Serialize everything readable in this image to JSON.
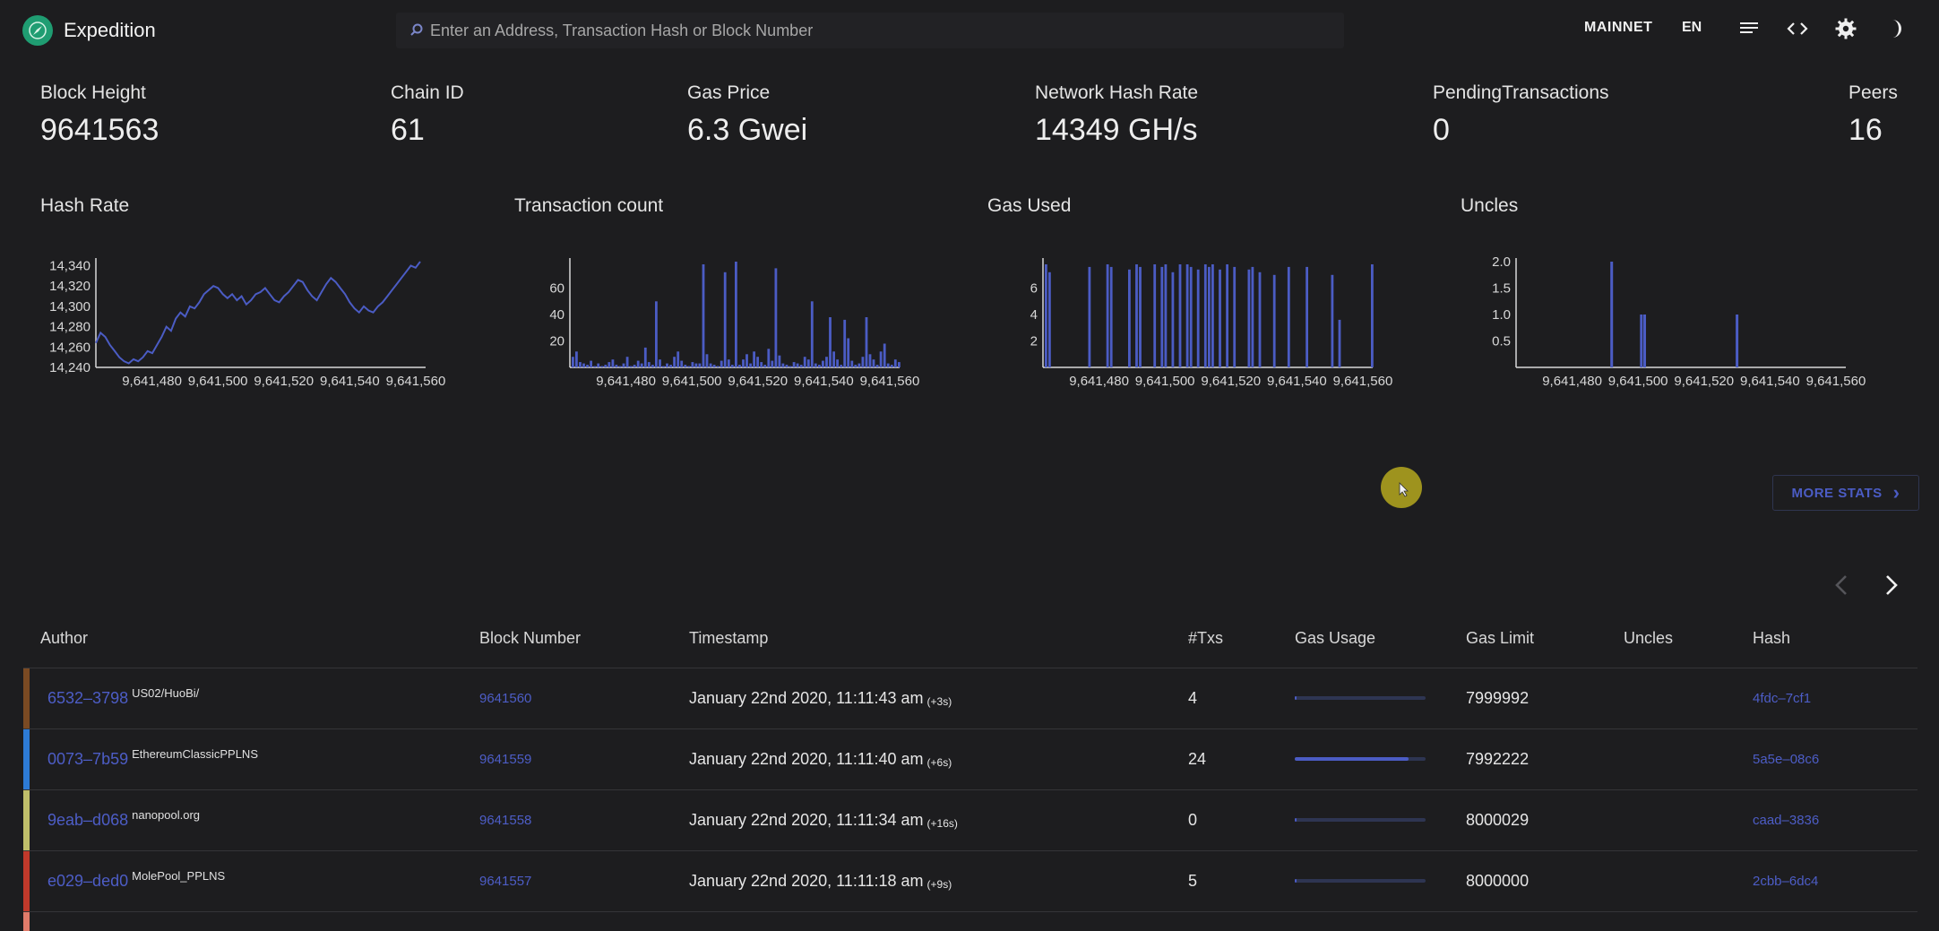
{
  "app": {
    "title": "Expedition",
    "logo_icon": "compass-leaf-icon"
  },
  "search": {
    "placeholder": "Enter an Address, Transaction Hash or Block Number"
  },
  "nav": {
    "network": "MAINNET",
    "language": "EN"
  },
  "stats": [
    {
      "label": "Block Height",
      "value": "9641563"
    },
    {
      "label": "Chain ID",
      "value": "61"
    },
    {
      "label": "Gas Price",
      "value": "6.3 Gwei"
    },
    {
      "label": "Network Hash Rate",
      "value": "14349 GH/s"
    },
    {
      "label": "PendingTransactions",
      "value": "0"
    },
    {
      "label": "Peers",
      "value": "16"
    }
  ],
  "chart_data": [
    {
      "type": "line",
      "title": "Hash Rate",
      "color": "#4b5cc4",
      "x_ticks": [
        "9,641,480",
        "9,641,500",
        "9,641,520",
        "9,641,540",
        "9,641,560"
      ],
      "y_ticks": [
        14240,
        14260,
        14280,
        14300,
        14320,
        14340
      ],
      "ylim": [
        14240,
        14344
      ],
      "xlim": [
        9641463,
        9641563
      ],
      "series": [
        {
          "values": [
            14264,
            14274,
            14270,
            14262,
            14256,
            14250,
            14246,
            14244,
            14248,
            14246,
            14250,
            14256,
            14254,
            14262,
            14270,
            14280,
            14276,
            14288,
            14294,
            14290,
            14300,
            14298,
            14304,
            14312,
            14316,
            14320,
            14318,
            14312,
            14308,
            14312,
            14306,
            14310,
            14302,
            14306,
            14312,
            14314,
            14318,
            14312,
            14306,
            14304,
            14310,
            14314,
            14320,
            14326,
            14324,
            14316,
            14310,
            14306,
            14314,
            14322,
            14328,
            14324,
            14318,
            14312,
            14304,
            14298,
            14294,
            14300,
            14296,
            14294,
            14300,
            14304,
            14310,
            14316,
            14322,
            14328,
            14334,
            14340,
            14338,
            14344
          ]
        }
      ]
    },
    {
      "type": "bar",
      "title": "Transaction count",
      "color": "#4b5cc4",
      "x_ticks": [
        "9,641,480",
        "9,641,500",
        "9,641,520",
        "9,641,540",
        "9,641,560"
      ],
      "y_ticks": [
        20,
        40,
        60
      ],
      "ylim": [
        0,
        80
      ],
      "xlim": [
        9641463,
        9641563
      ],
      "values": [
        8,
        12,
        4,
        3,
        2,
        5,
        1,
        3,
        1,
        2,
        4,
        6,
        2,
        1,
        3,
        8,
        1,
        2,
        5,
        3,
        15,
        4,
        2,
        50,
        6,
        1,
        3,
        2,
        8,
        12,
        5,
        2,
        1,
        4,
        3,
        3,
        78,
        10,
        3,
        2,
        1,
        5,
        72,
        6,
        2,
        80,
        2,
        6,
        10,
        3,
        12,
        8,
        4,
        2,
        14,
        5,
        75,
        9,
        3,
        2,
        1,
        4,
        3,
        2,
        8,
        6,
        50,
        3,
        2,
        5,
        8,
        38,
        12,
        6,
        2,
        36,
        22,
        5,
        2,
        3,
        8,
        38,
        10,
        6,
        2,
        12,
        18,
        3,
        2,
        6,
        4
      ]
    },
    {
      "type": "bar",
      "title": "Gas Used",
      "color": "#4b5cc4",
      "x_ticks": [
        "9,641,480",
        "9,641,500",
        "9,641,520",
        "9,641,540",
        "9,641,560"
      ],
      "y_ticks": [
        2,
        4,
        6
      ],
      "ylim": [
        0,
        8
      ],
      "xlim": [
        9641463,
        9641563
      ],
      "values": [
        7.8,
        7.2,
        0,
        0,
        0,
        0,
        0,
        0,
        0,
        0,
        0,
        0,
        7.6,
        0,
        0,
        0,
        0,
        7.8,
        7.6,
        0,
        0,
        0,
        0,
        7.4,
        0,
        7.8,
        7.6,
        0,
        0,
        0,
        7.8,
        0,
        7.6,
        7.8,
        0,
        7.2,
        0,
        7.8,
        0,
        7.8,
        7.6,
        0,
        7.4,
        0,
        7.8,
        7.6,
        7.8,
        0,
        7.4,
        0,
        7.8,
        0,
        7.6,
        0,
        0,
        0,
        7.4,
        7.6,
        0,
        7.2,
        0,
        0,
        0,
        7.0,
        0,
        0,
        0,
        7.6,
        0,
        0,
        0,
        0,
        7.6,
        0,
        0,
        0,
        0,
        0,
        0,
        7.0,
        0,
        3.6,
        0,
        0,
        0,
        0,
        0,
        0,
        0,
        0,
        7.8
      ]
    },
    {
      "type": "bar",
      "title": "Uncles",
      "color": "#4b5cc4",
      "x_ticks": [
        "9,641,480",
        "9,641,500",
        "9,641,520",
        "9,641,540",
        "9,641,560"
      ],
      "y_ticks": [
        0.5,
        1.0,
        1.5,
        2.0
      ],
      "ylim": [
        0,
        2.0
      ],
      "xlim": [
        9641463,
        9641563
      ],
      "points": [
        {
          "x": 9641492,
          "y": 2.0
        },
        {
          "x": 9641501,
          "y": 1.0
        },
        {
          "x": 9641502,
          "y": 1.0
        },
        {
          "x": 9641530,
          "y": 1.0
        }
      ]
    }
  ],
  "more_stats_label": "MORE STATS",
  "table": {
    "headers": [
      "Author",
      "Block Number",
      "Timestamp",
      "#Txs",
      "Gas Usage",
      "Gas Limit",
      "Uncles",
      "Hash"
    ],
    "rows": [
      {
        "color": "#7a4a23",
        "author": "6532–3798",
        "miner": "US02/HuoBi/",
        "block": "9641560",
        "time": "January 22nd 2020, 11:11:43 am",
        "ago": "(+3s)",
        "txs": "4",
        "gas_usage": 0.01,
        "gas_limit": "7999992",
        "uncles": "",
        "hash": "4fdc–7cf1"
      },
      {
        "color": "#2d7bd6",
        "author": "0073–7b59",
        "miner": "EthereumClassicPPLNS",
        "block": "9641559",
        "time": "January 22nd 2020, 11:11:40 am",
        "ago": "(+6s)",
        "txs": "24",
        "gas_usage": 0.87,
        "gas_limit": "7992222",
        "uncles": "",
        "hash": "5a5e–08c6"
      },
      {
        "color": "#bfbe6a",
        "author": "9eab–d068",
        "miner": "nanopool.org",
        "block": "9641558",
        "time": "January 22nd 2020, 11:11:34 am",
        "ago": "(+16s)",
        "txs": "0",
        "gas_usage": 0.0,
        "gas_limit": "8000029",
        "uncles": "",
        "hash": "caad–3836"
      },
      {
        "color": "#c0392b",
        "author": "e029–ded0",
        "miner": "MolePool_PPLNS",
        "block": "9641557",
        "time": "January 22nd 2020, 11:11:18 am",
        "ago": "(+9s)",
        "txs": "5",
        "gas_usage": 0.01,
        "gas_limit": "8000000",
        "uncles": "",
        "hash": "2cbb–6dc4"
      }
    ]
  }
}
